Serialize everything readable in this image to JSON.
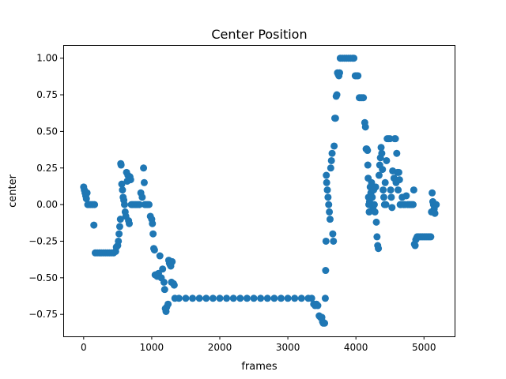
{
  "chart_data": {
    "type": "scatter",
    "title": "Center Position",
    "xlabel": "frames",
    "ylabel": "center",
    "xlim": [
      -300,
      5450
    ],
    "ylim": [
      -0.9,
      1.09
    ],
    "xticks": [
      0,
      1000,
      2000,
      3000,
      4000,
      5000
    ],
    "xtick_labels": [
      "0",
      "1000",
      "2000",
      "3000",
      "4000",
      "5000"
    ],
    "yticks": [
      -0.75,
      -0.5,
      -0.25,
      0.0,
      0.25,
      0.5,
      0.75,
      1.0
    ],
    "ytick_labels": [
      "−0.75",
      "−0.50",
      "−0.25",
      "0.00",
      "0.25",
      "0.50",
      "0.75",
      "1.00"
    ],
    "grid": false,
    "color": "#1f77b4",
    "series": [
      {
        "points": [
          [
            0,
            0.12
          ],
          [
            10,
            0.1
          ],
          [
            20,
            0.08
          ],
          [
            30,
            0.06
          ],
          [
            40,
            0.04
          ],
          [
            50,
            0.08
          ],
          [
            60,
            0.0
          ],
          [
            80,
            0.0
          ],
          [
            100,
            0.0
          ],
          [
            120,
            0.0
          ],
          [
            140,
            0.0
          ],
          [
            150,
            -0.14
          ],
          [
            160,
            0.0
          ],
          [
            170,
            -0.33
          ],
          [
            200,
            -0.33
          ],
          [
            230,
            -0.33
          ],
          [
            260,
            -0.33
          ],
          [
            290,
            -0.33
          ],
          [
            320,
            -0.33
          ],
          [
            350,
            -0.33
          ],
          [
            380,
            -0.33
          ],
          [
            410,
            -0.33
          ],
          [
            440,
            -0.33
          ],
          [
            470,
            -0.32
          ],
          [
            480,
            -0.29
          ],
          [
            500,
            -0.28
          ],
          [
            510,
            -0.25
          ],
          [
            520,
            -0.2
          ],
          [
            530,
            -0.15
          ],
          [
            540,
            -0.1
          ],
          [
            545,
            0.28
          ],
          [
            550,
            0.27
          ],
          [
            560,
            0.14
          ],
          [
            570,
            0.1
          ],
          [
            580,
            0.05
          ],
          [
            590,
            0.03
          ],
          [
            600,
            0.0
          ],
          [
            610,
            -0.05
          ],
          [
            620,
            -0.08
          ],
          [
            630,
            0.22
          ],
          [
            640,
            0.16
          ],
          [
            650,
            0.2
          ],
          [
            660,
            -0.11
          ],
          [
            670,
            -0.13
          ],
          [
            680,
            0.19
          ],
          [
            690,
            0.17
          ],
          [
            700,
            0.0
          ],
          [
            720,
            0.0
          ],
          [
            740,
            0.0
          ],
          [
            760,
            0.0
          ],
          [
            780,
            0.0
          ],
          [
            800,
            0.0
          ],
          [
            820,
            0.0
          ],
          [
            840,
            0.08
          ],
          [
            860,
            0.05
          ],
          [
            880,
            0.25
          ],
          [
            890,
            0.15
          ],
          [
            900,
            0.0
          ],
          [
            920,
            0.0
          ],
          [
            940,
            0.0
          ],
          [
            960,
            0.0
          ],
          [
            980,
            -0.08
          ],
          [
            1000,
            -0.1
          ],
          [
            1010,
            -0.13
          ],
          [
            1020,
            -0.2
          ],
          [
            1030,
            -0.3
          ],
          [
            1040,
            -0.31
          ],
          [
            1050,
            -0.48
          ],
          [
            1060,
            -0.48
          ],
          [
            1080,
            -0.49
          ],
          [
            1100,
            -0.47
          ],
          [
            1120,
            -0.35
          ],
          [
            1140,
            -0.5
          ],
          [
            1160,
            -0.44
          ],
          [
            1180,
            -0.53
          ],
          [
            1190,
            -0.58
          ],
          [
            1200,
            -0.71
          ],
          [
            1210,
            -0.73
          ],
          [
            1220,
            -0.7
          ],
          [
            1240,
            -0.68
          ],
          [
            1250,
            -0.38
          ],
          [
            1260,
            -0.4
          ],
          [
            1270,
            -0.41
          ],
          [
            1280,
            -0.42
          ],
          [
            1290,
            -0.53
          ],
          [
            1300,
            -0.39
          ],
          [
            1320,
            -0.54
          ],
          [
            1330,
            -0.55
          ],
          [
            1340,
            -0.64
          ],
          [
            1400,
            -0.64
          ],
          [
            1500,
            -0.64
          ],
          [
            1600,
            -0.64
          ],
          [
            1700,
            -0.64
          ],
          [
            1800,
            -0.64
          ],
          [
            1900,
            -0.64
          ],
          [
            2000,
            -0.64
          ],
          [
            2100,
            -0.64
          ],
          [
            2200,
            -0.64
          ],
          [
            2300,
            -0.64
          ],
          [
            2400,
            -0.64
          ],
          [
            2500,
            -0.64
          ],
          [
            2600,
            -0.64
          ],
          [
            2700,
            -0.64
          ],
          [
            2800,
            -0.64
          ],
          [
            2900,
            -0.64
          ],
          [
            3000,
            -0.64
          ],
          [
            3100,
            -0.64
          ],
          [
            3200,
            -0.64
          ],
          [
            3300,
            -0.64
          ],
          [
            3350,
            -0.64
          ],
          [
            3380,
            -0.68
          ],
          [
            3400,
            -0.69
          ],
          [
            3420,
            -0.68
          ],
          [
            3440,
            -0.69
          ],
          [
            3460,
            -0.76
          ],
          [
            3480,
            -0.77
          ],
          [
            3500,
            -0.77
          ],
          [
            3510,
            -0.8
          ],
          [
            3520,
            -0.81
          ],
          [
            3540,
            -0.81
          ],
          [
            3550,
            -0.64
          ],
          [
            3555,
            -0.45
          ],
          [
            3560,
            -0.25
          ],
          [
            3565,
            0.2
          ],
          [
            3570,
            0.15
          ],
          [
            3580,
            0.1
          ],
          [
            3590,
            0.05
          ],
          [
            3600,
            0.0
          ],
          [
            3610,
            -0.05
          ],
          [
            3620,
            -0.1
          ],
          [
            3630,
            0.25
          ],
          [
            3640,
            0.3
          ],
          [
            3650,
            0.35
          ],
          [
            3660,
            -0.2
          ],
          [
            3670,
            -0.25
          ],
          [
            3680,
            0.4
          ],
          [
            3690,
            0.59
          ],
          [
            3700,
            0.59
          ],
          [
            3710,
            0.74
          ],
          [
            3720,
            0.75
          ],
          [
            3730,
            0.9
          ],
          [
            3740,
            0.89
          ],
          [
            3750,
            0.88
          ],
          [
            3760,
            0.9
          ],
          [
            3770,
            1.0
          ],
          [
            3800,
            1.0
          ],
          [
            3830,
            1.0
          ],
          [
            3860,
            1.0
          ],
          [
            3890,
            1.0
          ],
          [
            3920,
            1.0
          ],
          [
            3950,
            1.0
          ],
          [
            3970,
            1.0
          ],
          [
            3990,
            0.88
          ],
          [
            4010,
            0.88
          ],
          [
            4030,
            0.88
          ],
          [
            4050,
            0.73
          ],
          [
            4070,
            0.73
          ],
          [
            4090,
            0.73
          ],
          [
            4110,
            0.73
          ],
          [
            4130,
            0.56
          ],
          [
            4140,
            0.53
          ],
          [
            4150,
            0.38
          ],
          [
            4160,
            0.38
          ],
          [
            4170,
            0.37
          ],
          [
            4175,
            0.27
          ],
          [
            4180,
            0.18
          ],
          [
            4185,
            0.05
          ],
          [
            4190,
            0.0
          ],
          [
            4195,
            -0.05
          ],
          [
            4200,
            0.02
          ],
          [
            4210,
            0.12
          ],
          [
            4220,
            0.08
          ],
          [
            4230,
            0.15
          ],
          [
            4240,
            0.05
          ],
          [
            4250,
            -0.02
          ],
          [
            4260,
            0.1
          ],
          [
            4270,
            0.0
          ],
          [
            4280,
            -0.05
          ],
          [
            4290,
            0.12
          ],
          [
            4300,
            -0.12
          ],
          [
            4310,
            -0.22
          ],
          [
            4320,
            -0.28
          ],
          [
            4330,
            -0.3
          ],
          [
            4340,
            0.2
          ],
          [
            4350,
            0.27
          ],
          [
            4360,
            0.32
          ],
          [
            4370,
            0.39
          ],
          [
            4380,
            0.35
          ],
          [
            4390,
            0.24
          ],
          [
            4400,
            0.1
          ],
          [
            4410,
            0.05
          ],
          [
            4420,
            0.0
          ],
          [
            4430,
            0.15
          ],
          [
            4440,
            0.0
          ],
          [
            4450,
            0.3
          ],
          [
            4460,
            0.45
          ],
          [
            4480,
            0.45
          ],
          [
            4500,
            0.45
          ],
          [
            4510,
            0.1
          ],
          [
            4520,
            0.05
          ],
          [
            4530,
            -0.02
          ],
          [
            4540,
            0.23
          ],
          [
            4560,
            0.18
          ],
          [
            4570,
            0.45
          ],
          [
            4580,
            0.45
          ],
          [
            4590,
            0.15
          ],
          [
            4600,
            0.35
          ],
          [
            4610,
            0.22
          ],
          [
            4620,
            0.1
          ],
          [
            4630,
            0.22
          ],
          [
            4640,
            0.17
          ],
          [
            4650,
            0.0
          ],
          [
            4660,
            0.0
          ],
          [
            4680,
            0.05
          ],
          [
            4700,
            0.0
          ],
          [
            4720,
            0.0
          ],
          [
            4740,
            0.06
          ],
          [
            4760,
            0.0
          ],
          [
            4780,
            0.0
          ],
          [
            4800,
            0.0
          ],
          [
            4820,
            0.0
          ],
          [
            4840,
            0.0
          ],
          [
            4850,
            0.1
          ],
          [
            4860,
            -0.27
          ],
          [
            4870,
            -0.28
          ],
          [
            4880,
            -0.24
          ],
          [
            4890,
            -0.23
          ],
          [
            4900,
            -0.22
          ],
          [
            4920,
            -0.22
          ],
          [
            4940,
            -0.22
          ],
          [
            4960,
            -0.22
          ],
          [
            4980,
            -0.22
          ],
          [
            5000,
            -0.22
          ],
          [
            5020,
            -0.22
          ],
          [
            5040,
            -0.22
          ],
          [
            5060,
            -0.22
          ],
          [
            5080,
            -0.22
          ],
          [
            5100,
            -0.22
          ],
          [
            5110,
            -0.05
          ],
          [
            5120,
            0.08
          ],
          [
            5130,
            0.02
          ],
          [
            5140,
            0.0
          ],
          [
            5150,
            -0.03
          ],
          [
            5160,
            -0.06
          ],
          [
            5170,
            0.0
          ],
          [
            5180,
            0.0
          ]
        ]
      }
    ]
  }
}
